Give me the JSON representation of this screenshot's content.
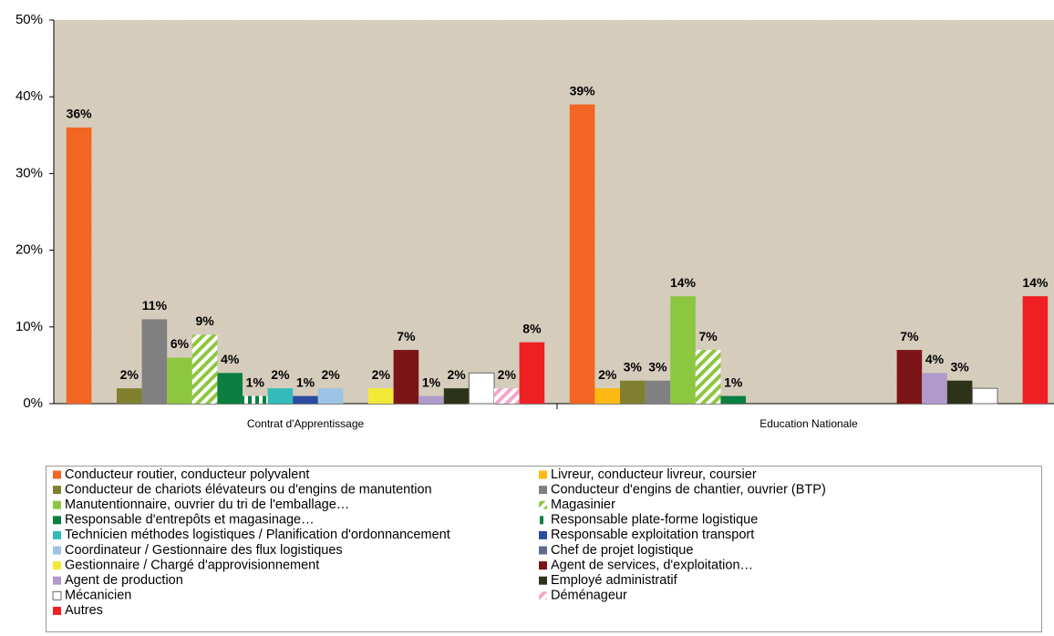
{
  "chart_data": {
    "type": "bar",
    "categories": [
      "Contrat d'Apprentissage",
      "Education Nationale"
    ],
    "ylim": [
      0,
      50
    ],
    "yticks": [
      {
        "value": 0,
        "label": "0%"
      },
      {
        "value": 10,
        "label": "10%"
      },
      {
        "value": 20,
        "label": "20%"
      },
      {
        "value": 30,
        "label": "30%"
      },
      {
        "value": 40,
        "label": "40%"
      },
      {
        "value": 50,
        "label": "50%"
      }
    ],
    "grid": false,
    "legend": "bottom",
    "series": [
      {
        "name": "Conducteur routier, conducteur polyvalent",
        "color": "#f26522",
        "values": [
          36,
          39
        ],
        "value_labels": [
          "36%",
          "39%"
        ]
      },
      {
        "name": "Livreur, conducteur livreur, coursier",
        "color": "#fdb913",
        "values": [
          0,
          2
        ],
        "value_labels": [
          null,
          "2%"
        ]
      },
      {
        "name": "Conducteur de chariots élévateurs ou d'engins de manutention",
        "color": "#7f7f2f",
        "values": [
          2,
          3
        ],
        "value_labels": [
          "2%",
          "3%"
        ]
      },
      {
        "name": "Conducteur d'engins de chantier, ouvrier (BTP)",
        "color": "#808080",
        "values": [
          11,
          3
        ],
        "value_labels": [
          "11%",
          "3%"
        ]
      },
      {
        "name": "Manutentionnaire, ouvrier du tri de l'emballage…",
        "color": "#8dc63f",
        "values": [
          6,
          14
        ],
        "value_labels": [
          "6%",
          "14%"
        ]
      },
      {
        "name": "Magasinier",
        "color": "#8dc63f",
        "pattern": "diagonal",
        "values": [
          9,
          7
        ],
        "value_labels": [
          "9%",
          "7%"
        ]
      },
      {
        "name": "Responsable d'entrepôts et magasinage…",
        "color": "#0a7f3f",
        "values": [
          4,
          1
        ],
        "value_labels": [
          "4%",
          "1%"
        ]
      },
      {
        "name": "Responsable plate-forme logistique",
        "color": "#0a7f3f",
        "pattern": "vertical",
        "values": [
          1,
          0
        ],
        "value_labels": [
          "1%",
          null
        ]
      },
      {
        "name": "Technicien méthodes logistiques / Planification d'ordonnancement",
        "color": "#33bbbb",
        "values": [
          2,
          0
        ],
        "value_labels": [
          "2%",
          null
        ]
      },
      {
        "name": "Responsable exploitation transport",
        "color": "#2b4ba0",
        "values": [
          1,
          0
        ],
        "value_labels": [
          "1%",
          null
        ]
      },
      {
        "name": "Coordinateur / Gestionnaire des flux logistiques",
        "color": "#9dc3e6",
        "values": [
          2,
          0
        ],
        "value_labels": [
          "2%",
          null
        ]
      },
      {
        "name": "Chef de projet logistique",
        "color": "#5f6a8f",
        "values": [
          0,
          0
        ],
        "value_labels": [
          null,
          null
        ]
      },
      {
        "name": "Gestionnaire / Chargé d'approvisionnement",
        "color": "#f2e835",
        "values": [
          2,
          0
        ],
        "value_labels": [
          "2%",
          null
        ]
      },
      {
        "name": "Agent de services, d'exploitation…",
        "color": "#7b1416",
        "values": [
          7,
          7
        ],
        "value_labels": [
          "7%",
          "7%"
        ]
      },
      {
        "name": "Agent de production",
        "color": "#b09acb",
        "values": [
          1,
          4
        ],
        "value_labels": [
          "1%",
          "4%"
        ]
      },
      {
        "name": "Employé administratif",
        "color": "#2d3318",
        "values": [
          2,
          3
        ],
        "value_labels": [
          "2%",
          "3%"
        ]
      },
      {
        "name": "Mécanicien",
        "color": "#ffffff",
        "values": [
          4,
          2
        ],
        "value_labels": [
          null,
          null
        ]
      },
      {
        "name": "Déménageur",
        "color": "#f4a6c8",
        "pattern": "diagonal",
        "values": [
          2,
          0
        ],
        "value_labels": [
          "2%",
          null
        ]
      },
      {
        "name": "Autres",
        "color": "#ee2024",
        "values": [
          8,
          14
        ],
        "value_labels": [
          "8%",
          "14%"
        ]
      }
    ]
  }
}
